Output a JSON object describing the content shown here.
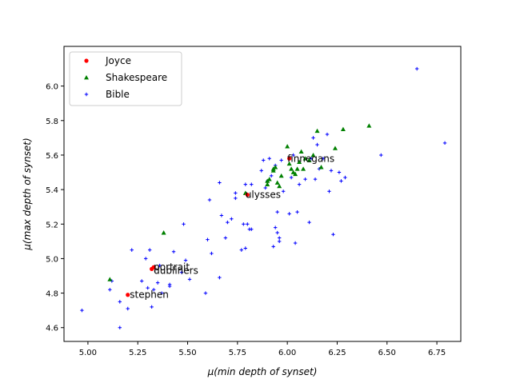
{
  "chart_data": {
    "type": "scatter",
    "title": "",
    "xlabel": "μ(min depth of synset)",
    "ylabel": "μ(max depth of synset)",
    "xlim": [
      4.88,
      6.87
    ],
    "ylim": [
      4.52,
      6.23
    ],
    "xticks": [
      "5.00",
      "5.25",
      "5.50",
      "5.75",
      "6.00",
      "6.25",
      "6.50",
      "6.75"
    ],
    "yticks": [
      "4.6",
      "4.8",
      "5.0",
      "5.2",
      "5.4",
      "5.6",
      "5.8",
      "6.0"
    ],
    "grid": false,
    "legend_position": "upper-left",
    "series": [
      {
        "name": "Joyce",
        "color": "#ff0000",
        "marker": "circle",
        "points": [
          {
            "x": 5.2,
            "y": 4.79
          },
          {
            "x": 5.32,
            "y": 4.94
          },
          {
            "x": 5.33,
            "y": 4.95
          },
          {
            "x": 5.8,
            "y": 5.37
          },
          {
            "x": 6.01,
            "y": 5.58
          }
        ]
      },
      {
        "name": "Shakespeare",
        "color": "#008000",
        "marker": "triangle",
        "points": [
          {
            "x": 5.11,
            "y": 4.88
          },
          {
            "x": 5.38,
            "y": 5.15
          },
          {
            "x": 5.79,
            "y": 5.38
          },
          {
            "x": 5.9,
            "y": 5.43
          },
          {
            "x": 5.9,
            "y": 5.45
          },
          {
            "x": 5.91,
            "y": 5.46
          },
          {
            "x": 5.93,
            "y": 5.51
          },
          {
            "x": 5.93,
            "y": 5.52
          },
          {
            "x": 5.94,
            "y": 5.53
          },
          {
            "x": 5.95,
            "y": 5.44
          },
          {
            "x": 5.96,
            "y": 5.42
          },
          {
            "x": 5.97,
            "y": 5.48
          },
          {
            "x": 6.0,
            "y": 5.65
          },
          {
            "x": 6.01,
            "y": 5.55
          },
          {
            "x": 6.02,
            "y": 5.52
          },
          {
            "x": 6.03,
            "y": 5.5
          },
          {
            "x": 6.04,
            "y": 5.49
          },
          {
            "x": 6.05,
            "y": 5.52
          },
          {
            "x": 6.06,
            "y": 5.56
          },
          {
            "x": 6.07,
            "y": 5.62
          },
          {
            "x": 6.08,
            "y": 5.52
          },
          {
            "x": 6.09,
            "y": 5.58
          },
          {
            "x": 6.11,
            "y": 5.57
          },
          {
            "x": 6.13,
            "y": 5.6
          },
          {
            "x": 6.15,
            "y": 5.74
          },
          {
            "x": 6.17,
            "y": 5.53
          },
          {
            "x": 6.24,
            "y": 5.64
          },
          {
            "x": 6.28,
            "y": 5.75
          },
          {
            "x": 6.41,
            "y": 5.77
          }
        ]
      },
      {
        "name": "Bible",
        "color": "#0000ff",
        "marker": "plus",
        "points": [
          {
            "x": 4.97,
            "y": 4.7
          },
          {
            "x": 5.11,
            "y": 4.82
          },
          {
            "x": 5.12,
            "y": 4.87
          },
          {
            "x": 5.16,
            "y": 4.6
          },
          {
            "x": 5.16,
            "y": 4.75
          },
          {
            "x": 5.2,
            "y": 4.71
          },
          {
            "x": 5.22,
            "y": 5.05
          },
          {
            "x": 5.27,
            "y": 4.87
          },
          {
            "x": 5.29,
            "y": 5.0
          },
          {
            "x": 5.3,
            "y": 4.83
          },
          {
            "x": 5.31,
            "y": 5.05
          },
          {
            "x": 5.32,
            "y": 4.72
          },
          {
            "x": 5.33,
            "y": 4.82
          },
          {
            "x": 5.35,
            "y": 4.86
          },
          {
            "x": 5.36,
            "y": 4.96
          },
          {
            "x": 5.37,
            "y": 4.8
          },
          {
            "x": 5.41,
            "y": 4.84
          },
          {
            "x": 5.41,
            "y": 4.85
          },
          {
            "x": 5.43,
            "y": 5.04
          },
          {
            "x": 5.47,
            "y": 4.92
          },
          {
            "x": 5.48,
            "y": 5.2
          },
          {
            "x": 5.49,
            "y": 4.99
          },
          {
            "x": 5.51,
            "y": 4.88
          },
          {
            "x": 5.59,
            "y": 4.8
          },
          {
            "x": 5.6,
            "y": 5.11
          },
          {
            "x": 5.61,
            "y": 5.34
          },
          {
            "x": 5.62,
            "y": 5.03
          },
          {
            "x": 5.66,
            "y": 4.89
          },
          {
            "x": 5.66,
            "y": 5.44
          },
          {
            "x": 5.67,
            "y": 5.25
          },
          {
            "x": 5.69,
            "y": 5.12
          },
          {
            "x": 5.7,
            "y": 5.21
          },
          {
            "x": 5.72,
            "y": 5.23
          },
          {
            "x": 5.74,
            "y": 5.35
          },
          {
            "x": 5.74,
            "y": 5.38
          },
          {
            "x": 5.77,
            "y": 5.05
          },
          {
            "x": 5.78,
            "y": 5.2
          },
          {
            "x": 5.79,
            "y": 5.06
          },
          {
            "x": 5.79,
            "y": 5.43
          },
          {
            "x": 5.8,
            "y": 5.2
          },
          {
            "x": 5.81,
            "y": 5.17
          },
          {
            "x": 5.82,
            "y": 5.17
          },
          {
            "x": 5.82,
            "y": 5.43
          },
          {
            "x": 5.87,
            "y": 5.51
          },
          {
            "x": 5.88,
            "y": 5.57
          },
          {
            "x": 5.89,
            "y": 5.41
          },
          {
            "x": 5.9,
            "y": 5.45
          },
          {
            "x": 5.91,
            "y": 5.58
          },
          {
            "x": 5.92,
            "y": 5.48
          },
          {
            "x": 5.93,
            "y": 5.07
          },
          {
            "x": 5.94,
            "y": 5.54
          },
          {
            "x": 5.94,
            "y": 5.18
          },
          {
            "x": 5.95,
            "y": 5.27
          },
          {
            "x": 5.95,
            "y": 5.15
          },
          {
            "x": 5.96,
            "y": 5.12
          },
          {
            "x": 5.96,
            "y": 5.1
          },
          {
            "x": 5.97,
            "y": 5.57
          },
          {
            "x": 5.98,
            "y": 5.39
          },
          {
            "x": 6.01,
            "y": 5.26
          },
          {
            "x": 6.02,
            "y": 5.47
          },
          {
            "x": 6.03,
            "y": 5.6
          },
          {
            "x": 6.04,
            "y": 5.09
          },
          {
            "x": 6.05,
            "y": 5.27
          },
          {
            "x": 6.06,
            "y": 5.43
          },
          {
            "x": 6.09,
            "y": 5.46
          },
          {
            "x": 6.11,
            "y": 5.21
          },
          {
            "x": 6.12,
            "y": 5.58
          },
          {
            "x": 6.13,
            "y": 5.7
          },
          {
            "x": 6.14,
            "y": 5.46
          },
          {
            "x": 6.15,
            "y": 5.66
          },
          {
            "x": 6.16,
            "y": 5.52
          },
          {
            "x": 6.18,
            "y": 5.58
          },
          {
            "x": 6.2,
            "y": 5.72
          },
          {
            "x": 6.21,
            "y": 5.39
          },
          {
            "x": 6.22,
            "y": 5.51
          },
          {
            "x": 6.23,
            "y": 5.14
          },
          {
            "x": 6.26,
            "y": 5.5
          },
          {
            "x": 6.27,
            "y": 5.45
          },
          {
            "x": 6.29,
            "y": 5.47
          },
          {
            "x": 6.47,
            "y": 5.6
          },
          {
            "x": 6.65,
            "y": 6.1
          },
          {
            "x": 6.79,
            "y": 5.67
          }
        ]
      }
    ],
    "annotations": [
      {
        "text": "stephen",
        "x": 5.21,
        "y": 4.79
      },
      {
        "text": "portrait",
        "x": 5.33,
        "y": 4.95
      },
      {
        "text": "dubliners",
        "x": 5.33,
        "y": 4.93
      },
      {
        "text": "ulysses",
        "x": 5.79,
        "y": 5.37
      },
      {
        "text": "finnegans",
        "x": 6.0,
        "y": 5.58
      }
    ]
  }
}
